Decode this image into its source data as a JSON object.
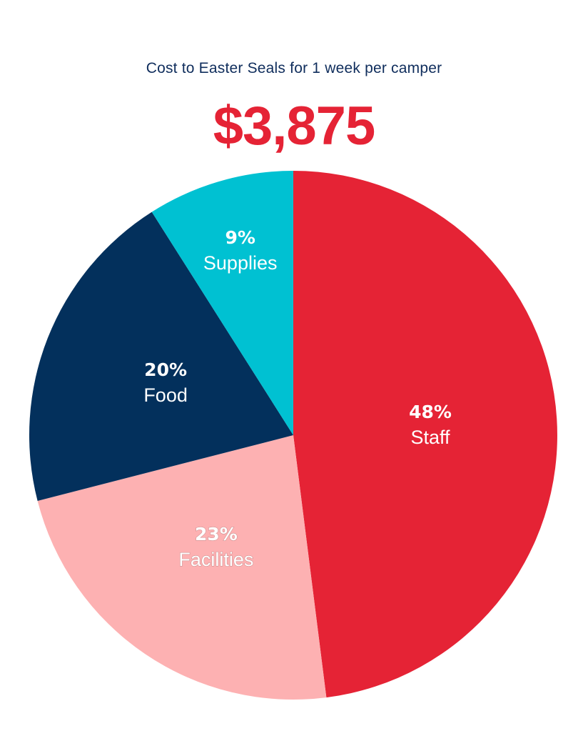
{
  "header": {
    "subtitle": "Cost to Easter Seals for 1 week per camper",
    "total": "$3,875"
  },
  "colors": {
    "subtitle": "#0f2d5c",
    "total": "#e52335"
  },
  "chart_data": {
    "type": "pie",
    "start_angle_deg": 0,
    "direction": "clockwise",
    "slices": [
      {
        "name": "Staff",
        "value": 48,
        "pct_label": "48%",
        "color": "#e52335"
      },
      {
        "name": "Facilities",
        "value": 23,
        "pct_label": "23%",
        "color": "#fdb1b2"
      },
      {
        "name": "Food",
        "value": 20,
        "pct_label": "20%",
        "color": "#03305c"
      },
      {
        "name": "Supplies",
        "value": 9,
        "pct_label": "9%",
        "color": "#00c1d2"
      }
    ]
  }
}
